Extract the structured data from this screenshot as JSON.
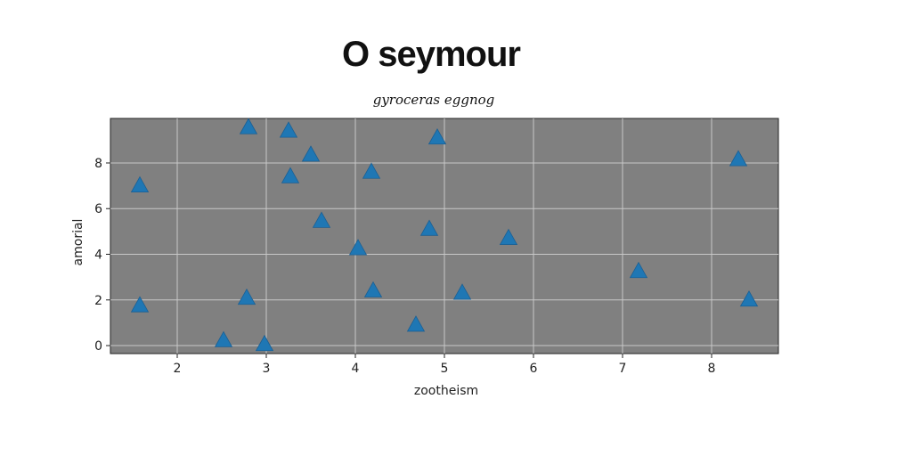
{
  "chart_data": {
    "type": "scatter",
    "title": "O seymour",
    "subtitle": "gyroceras eggnog",
    "xlabel": "zootheism",
    "ylabel": "amorial",
    "xlim": [
      1.25,
      8.75
    ],
    "ylim": [
      -0.35,
      9.95
    ],
    "xticks": [
      2,
      3,
      4,
      5,
      6,
      7,
      8
    ],
    "yticks": [
      0,
      2,
      4,
      6,
      8
    ],
    "grid": true,
    "marker": "triangle",
    "colors": {
      "marker": "#1f77b4",
      "plot_background": "#808080",
      "grid": "#c8c8c8"
    },
    "points": [
      {
        "x": 1.58,
        "y": 1.75
      },
      {
        "x": 1.58,
        "y": 7.0
      },
      {
        "x": 2.52,
        "y": 0.22
      },
      {
        "x": 2.78,
        "y": 2.08
      },
      {
        "x": 2.8,
        "y": 9.55
      },
      {
        "x": 2.98,
        "y": 0.05
      },
      {
        "x": 3.25,
        "y": 9.4
      },
      {
        "x": 3.27,
        "y": 7.4
      },
      {
        "x": 3.5,
        "y": 8.35
      },
      {
        "x": 3.62,
        "y": 5.45
      },
      {
        "x": 4.03,
        "y": 4.25
      },
      {
        "x": 4.18,
        "y": 7.6
      },
      {
        "x": 4.2,
        "y": 2.4
      },
      {
        "x": 4.68,
        "y": 0.9
      },
      {
        "x": 4.83,
        "y": 5.1
      },
      {
        "x": 4.92,
        "y": 9.1
      },
      {
        "x": 5.2,
        "y": 2.3
      },
      {
        "x": 5.72,
        "y": 4.7
      },
      {
        "x": 7.18,
        "y": 3.25
      },
      {
        "x": 8.3,
        "y": 8.15
      },
      {
        "x": 8.42,
        "y": 2.0
      }
    ]
  }
}
